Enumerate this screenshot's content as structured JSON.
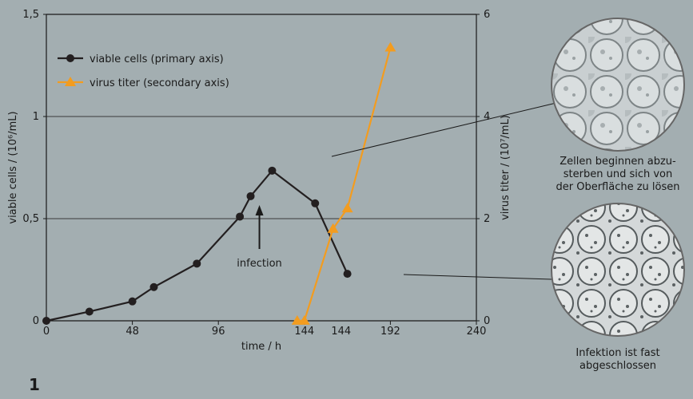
{
  "figure_number": "1",
  "chart_data": {
    "type": "line",
    "xlabel": "time / h",
    "ylabel_primary": "viable cells / (10⁶/mL)",
    "ylabel_secondary": "virus titer / (10⁷/mL)",
    "xlim": [
      0,
      240
    ],
    "ylim_primary": [
      0,
      1.5
    ],
    "ylim_secondary": [
      0,
      6
    ],
    "x_ticks": [
      "0",
      "48",
      "96",
      "144",
      "192",
      "240"
    ],
    "y_ticks_primary": [
      "0",
      "0,5",
      "1",
      "1,5"
    ],
    "y_ticks_secondary": [
      "0",
      "2",
      "4",
      "6"
    ],
    "x_extra_tick": "144",
    "grid": "horizontal",
    "legend_position": "top-left",
    "series": [
      {
        "name": "viable cells (primary axis)",
        "axis": "primary",
        "marker": "circle",
        "color": "#231f20",
        "x": [
          0,
          24,
          48,
          60,
          84,
          108,
          114,
          126,
          150,
          168
        ],
        "y": [
          0,
          0.045,
          0.095,
          0.165,
          0.28,
          0.51,
          0.61,
          0.735,
          0.575,
          0.23
        ]
      },
      {
        "name": "virus titer (secondary axis)",
        "axis": "secondary",
        "marker": "triangle",
        "color": "#f39c1f",
        "x": [
          140,
          144,
          160,
          168,
          192
        ],
        "y": [
          0,
          0,
          1.8,
          2.2,
          5.35
        ]
      }
    ],
    "annotations": [
      {
        "text": "infection",
        "x": 114
      }
    ]
  },
  "images": [
    {
      "caption": "Zellen beginnen abzu-\nsterben und sich von\nder Oberfläche zu lösen"
    },
    {
      "caption": "Infektion ist fast\nabgeschlossen"
    }
  ]
}
